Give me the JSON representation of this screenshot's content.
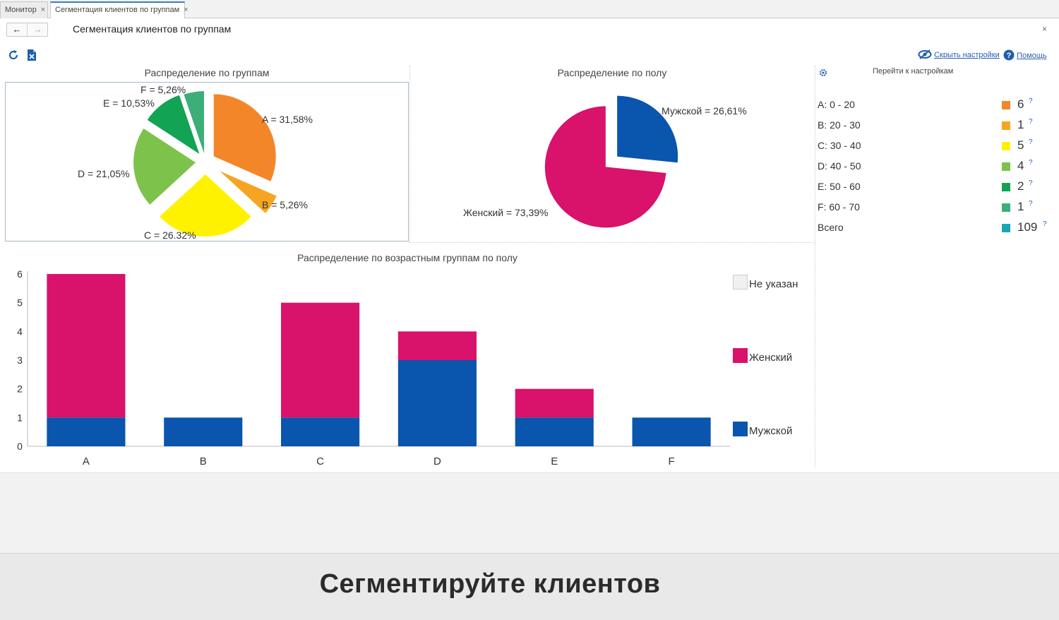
{
  "tabs": [
    {
      "label": "Монитор",
      "active": false
    },
    {
      "label": "Сегментация клиентов по группам",
      "active": true
    }
  ],
  "close_glyph": "×",
  "nav": {
    "back_glyph": "←",
    "forward_glyph": "→"
  },
  "form_title": "Сегментация клиентов по группам",
  "toolbar": {
    "refresh_icon": "refresh-icon",
    "excel_icon": "excel-icon",
    "hide_settings_label": "Скрыть настройки",
    "help_label": "Помощь"
  },
  "charts": [
    {
      "type": "pie",
      "title": "Распределение  по группам",
      "slices": [
        {
          "label": "A = 31,58%",
          "category": "A",
          "value": 31.58,
          "color": "#f4862a"
        },
        {
          "label": "B = 5,26%",
          "category": "B",
          "value": 5.26,
          "color": "#f7a521"
        },
        {
          "label": "C = 26.32%",
          "category": "C",
          "value": 26.32,
          "color": "#fff200"
        },
        {
          "label": "D = 21,05%",
          "category": "D",
          "value": 21.05,
          "color": "#7dc24a"
        },
        {
          "label": "E = 10,53%",
          "category": "E",
          "value": 10.53,
          "color": "#13a354"
        },
        {
          "label": "F = 5,26%",
          "category": "F",
          "value": 5.26,
          "color": "#3dae78"
        }
      ]
    },
    {
      "type": "pie",
      "title": "Распределение по полу",
      "slices": [
        {
          "label": "Мужской = 26,61%",
          "category": "Мужской",
          "value": 26.61,
          "color": "#0a55ad"
        },
        {
          "label": "Женский = 73,39%",
          "category": "Женский",
          "value": 73.39,
          "color": "#d9126b"
        }
      ]
    }
  ],
  "chart_data": {
    "type": "bar",
    "stacked": true,
    "title": "Распределение по возрастным группам по полу",
    "categories": [
      "A",
      "B",
      "C",
      "D",
      "E",
      "F"
    ],
    "series": [
      {
        "name": "Мужской",
        "values": [
          1,
          1,
          1,
          3,
          1,
          1
        ],
        "color": "#0a55ad"
      },
      {
        "name": "Женский",
        "values": [
          5,
          0,
          4,
          1,
          1,
          0
        ],
        "color": "#d9126b"
      },
      {
        "name": "Не указан",
        "values": [
          0,
          0,
          0,
          0,
          0,
          0
        ],
        "color": "#f0f0f0"
      }
    ],
    "ylim": [
      0,
      6
    ],
    "yticks": [
      "0",
      "1",
      "2",
      "3",
      "4",
      "5",
      "6"
    ],
    "legend_position": "right"
  },
  "side_panel": {
    "goto_settings_label": "Перейти к настройкам",
    "rows": [
      {
        "label": "A: 0 - 20",
        "value": "6",
        "color": "#f4862a"
      },
      {
        "label": "B: 20 - 30",
        "value": "1",
        "color": "#f7a521"
      },
      {
        "label": "C: 30 - 40",
        "value": "5",
        "color": "#fff200"
      },
      {
        "label": "D: 40 - 50",
        "value": "4",
        "color": "#7dc24a"
      },
      {
        "label": "E: 50 - 60",
        "value": "2",
        "color": "#13a354"
      },
      {
        "label": "F: 60 - 70",
        "value": "1",
        "color": "#3dae78"
      },
      {
        "label": "Всего",
        "value": "109",
        "color": "#1aa6b7"
      }
    ],
    "help_glyph": "?"
  },
  "banner": {
    "text": "Сегментируйте клиентов"
  }
}
